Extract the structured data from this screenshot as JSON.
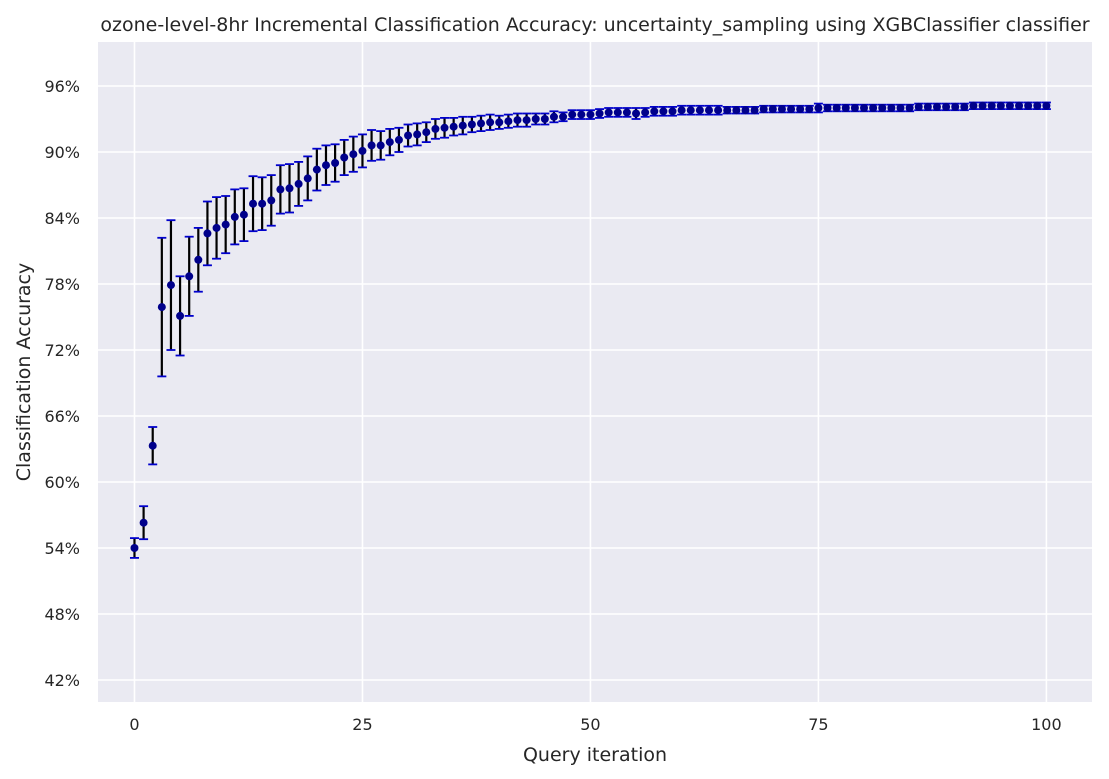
{
  "chart_data": {
    "type": "scatter",
    "title": "ozone-level-8hr Incremental Classification Accuracy: uncertainty_sampling using XGBClassifier classifier",
    "xlabel": "Query iteration",
    "ylabel": "Classification Accuracy",
    "xlim": [
      -4,
      105
    ],
    "ylim": [
      40,
      100
    ],
    "x_ticks": [
      0,
      25,
      50,
      75,
      100
    ],
    "y_ticks": [
      42,
      48,
      54,
      60,
      66,
      72,
      78,
      84,
      90,
      96
    ],
    "y_tick_labels": [
      "42%",
      "48%",
      "54%",
      "60%",
      "66%",
      "72%",
      "78%",
      "84%",
      "90%",
      "96%"
    ],
    "grid": true,
    "colors": {
      "background": "#eaeaf2",
      "grid": "#ffffff",
      "point": "#00008b",
      "error_bar": "#000000",
      "cap": "#0000cc"
    },
    "series": [
      {
        "x": [
          0,
          1,
          2,
          3,
          4,
          5,
          6,
          7,
          8,
          9,
          10,
          11,
          12,
          13,
          14,
          15,
          16,
          17,
          18,
          19,
          20,
          21,
          22,
          23,
          24,
          25,
          26,
          27,
          28,
          29,
          30,
          31,
          32,
          33,
          34,
          35,
          36,
          37,
          38,
          39,
          40,
          41,
          42,
          43,
          44,
          45,
          46,
          47,
          48,
          49,
          50,
          51,
          52,
          53,
          54,
          55,
          56,
          57,
          58,
          59,
          60,
          61,
          62,
          63,
          64,
          65,
          66,
          67,
          68,
          69,
          70,
          71,
          72,
          73,
          74,
          75,
          76,
          77,
          78,
          79,
          80,
          81,
          82,
          83,
          84,
          85,
          86,
          87,
          88,
          89,
          90,
          91,
          92,
          93,
          94,
          95,
          96,
          97,
          98,
          99,
          100
        ],
        "y": [
          54.0,
          56.3,
          63.3,
          75.9,
          77.9,
          75.1,
          78.7,
          80.2,
          82.6,
          83.1,
          83.4,
          84.1,
          84.3,
          85.3,
          85.3,
          85.6,
          86.6,
          86.7,
          87.1,
          87.6,
          88.4,
          88.8,
          89.0,
          89.5,
          89.8,
          90.1,
          90.6,
          90.6,
          90.9,
          91.1,
          91.5,
          91.6,
          91.8,
          92.1,
          92.2,
          92.3,
          92.4,
          92.5,
          92.6,
          92.7,
          92.7,
          92.8,
          92.9,
          92.9,
          93.0,
          93.0,
          93.2,
          93.2,
          93.4,
          93.4,
          93.4,
          93.5,
          93.6,
          93.6,
          93.6,
          93.5,
          93.6,
          93.7,
          93.7,
          93.7,
          93.8,
          93.8,
          93.8,
          93.8,
          93.8,
          93.8,
          93.8,
          93.8,
          93.8,
          93.9,
          93.9,
          93.9,
          93.9,
          93.9,
          93.9,
          94.0,
          94.0,
          94.0,
          94.0,
          94.0,
          94.0,
          94.0,
          94.0,
          94.0,
          94.0,
          94.0,
          94.1,
          94.1,
          94.1,
          94.1,
          94.1,
          94.1,
          94.2,
          94.2,
          94.2,
          94.2,
          94.2,
          94.2,
          94.2,
          94.2,
          94.2
        ],
        "err": [
          0.9,
          1.5,
          1.7,
          6.3,
          5.9,
          3.6,
          3.6,
          2.9,
          2.9,
          2.8,
          2.6,
          2.5,
          2.4,
          2.5,
          2.4,
          2.3,
          2.2,
          2.2,
          2.0,
          2.0,
          1.9,
          1.8,
          1.7,
          1.6,
          1.6,
          1.5,
          1.4,
          1.3,
          1.2,
          1.1,
          1.0,
          1.0,
          0.9,
          0.9,
          0.9,
          0.8,
          0.8,
          0.7,
          0.7,
          0.7,
          0.6,
          0.6,
          0.6,
          0.6,
          0.5,
          0.5,
          0.5,
          0.4,
          0.4,
          0.4,
          0.4,
          0.4,
          0.4,
          0.4,
          0.4,
          0.5,
          0.4,
          0.4,
          0.4,
          0.4,
          0.4,
          0.4,
          0.4,
          0.4,
          0.4,
          0.3,
          0.3,
          0.3,
          0.3,
          0.3,
          0.3,
          0.3,
          0.3,
          0.3,
          0.3,
          0.4,
          0.3,
          0.3,
          0.3,
          0.3,
          0.3,
          0.3,
          0.3,
          0.3,
          0.3,
          0.3,
          0.3,
          0.3,
          0.3,
          0.3,
          0.3,
          0.3,
          0.3,
          0.3,
          0.3,
          0.3,
          0.3,
          0.3,
          0.3,
          0.3,
          0.3
        ]
      }
    ]
  }
}
